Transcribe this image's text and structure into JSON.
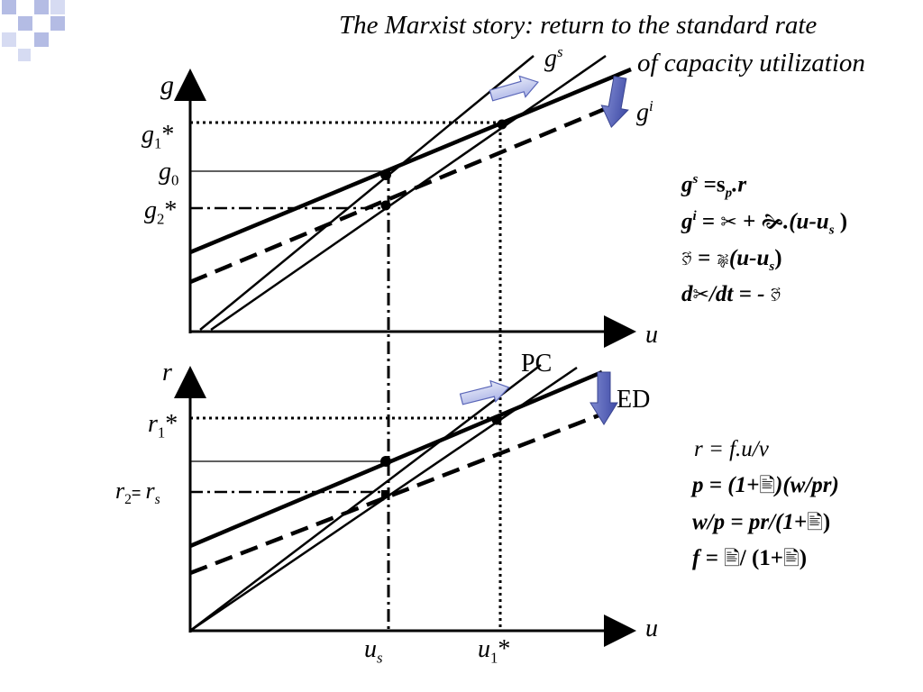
{
  "title": {
    "line1": "The Marxist story: return to the standard rate",
    "line2": "of capacity utilization"
  },
  "top_panel": {
    "y_axis_label": "g",
    "x_axis_label": "u",
    "tick_g1": "g",
    "tick_g1_sub": "1",
    "tick_g1_star": "*",
    "tick_g0": "g",
    "tick_g0_sub": "0",
    "tick_g2": "g",
    "tick_g2_sub": "2",
    "tick_g2_star": "*",
    "gs_label": "g",
    "gs_sup": "s",
    "gi_label": "g",
    "gi_sup": "i"
  },
  "bottom_panel": {
    "y_axis_label": "r",
    "x_axis_label": "u",
    "tick_r1": "r",
    "tick_r1_sub": "1",
    "tick_r1_star": "*",
    "tick_r2": "r",
    "tick_r2_sub": "2",
    "tick_r2_eq": "= ",
    "tick_rs": "r",
    "tick_rs_sub": "s",
    "pc_label": "PC",
    "ed_label": "ED",
    "x_tick_us": "u",
    "x_tick_us_sub": "s",
    "x_tick_u1": "u",
    "x_tick_u1_sub": "1",
    "x_tick_u1_star": "*"
  },
  "equations_top": {
    "eq1_a": "g",
    "eq1_sup": "s",
    "eq1_b": " =s",
    "eq1_sub": "p",
    "eq1_c": ".r",
    "eq2_a": "g",
    "eq2_sup": "i",
    "eq2_b": " = ",
    "eq2_sym1": "✂",
    "eq2_c": " + ",
    "eq2_sym2": "🙞",
    "eq2_d": ".(u-u",
    "eq2_sub": "s",
    "eq2_e": " )",
    "eq3_sym1": "🙑",
    "eq3_b": " = ",
    "eq3_sym2": "🙖",
    "eq3_c": "(u-u",
    "eq3_sub": "s",
    "eq3_d": ")",
    "eq4_a": "d",
    "eq4_sym1": "✂",
    "eq4_b": "/dt = - ",
    "eq4_sym2": "🙑"
  },
  "equations_bottom": {
    "eq1": "r = f.u/v",
    "eq2_a": "p = (1+",
    "eq2_sym": "🖹",
    "eq2_b": ")(w/pr)",
    "eq3_a": "w/p = pr/(1+",
    "eq3_sym": "🖹",
    "eq3_b": ")",
    "eq4_a": "f = ",
    "eq4_sym1": "🖹",
    "eq4_b": "/ (1+",
    "eq4_sym2": "🖹",
    "eq4_c": ")"
  },
  "colors": {
    "deco_square": "#b4bce4",
    "arrow_light": "#b8c0ec",
    "arrow_dark": "#5a66b8",
    "line": "#000000"
  }
}
